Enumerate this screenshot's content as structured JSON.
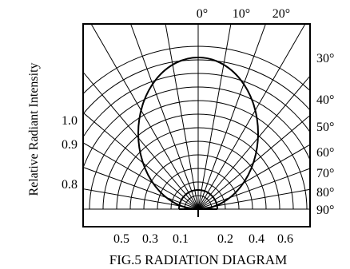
{
  "chart_data": {
    "type": "polar-radiation",
    "title": "FIG.5 RADIATION DIAGRAM",
    "ylabel": "Relative Radiant Intensity",
    "angle_labels": [
      "0°",
      "10°",
      "20°",
      "30°",
      "40°",
      "50°",
      "60°",
      "70°",
      "80°",
      "90°"
    ],
    "angle_values_deg": [
      0,
      10,
      20,
      30,
      40,
      50,
      60,
      70,
      80,
      90
    ],
    "left_scale_labels": [
      "1.0",
      "0.9",
      "0.8"
    ],
    "bottom_left_labels": [
      "0.5",
      "0.3",
      "0.1"
    ],
    "bottom_right_labels": [
      "0.2",
      "0.4",
      "0.6"
    ],
    "grid": true,
    "angle_step_deg": 10,
    "radial_rings": 12,
    "series": [
      {
        "shape": "radiation-pattern",
        "points_angle_deg": [
          0,
          10,
          20,
          30,
          40,
          50,
          60,
          70,
          80,
          90
        ],
        "relative_intensity": [
          1.0,
          0.97,
          0.89,
          0.77,
          0.63,
          0.48,
          0.34,
          0.2,
          0.09,
          0.0
        ]
      }
    ]
  }
}
